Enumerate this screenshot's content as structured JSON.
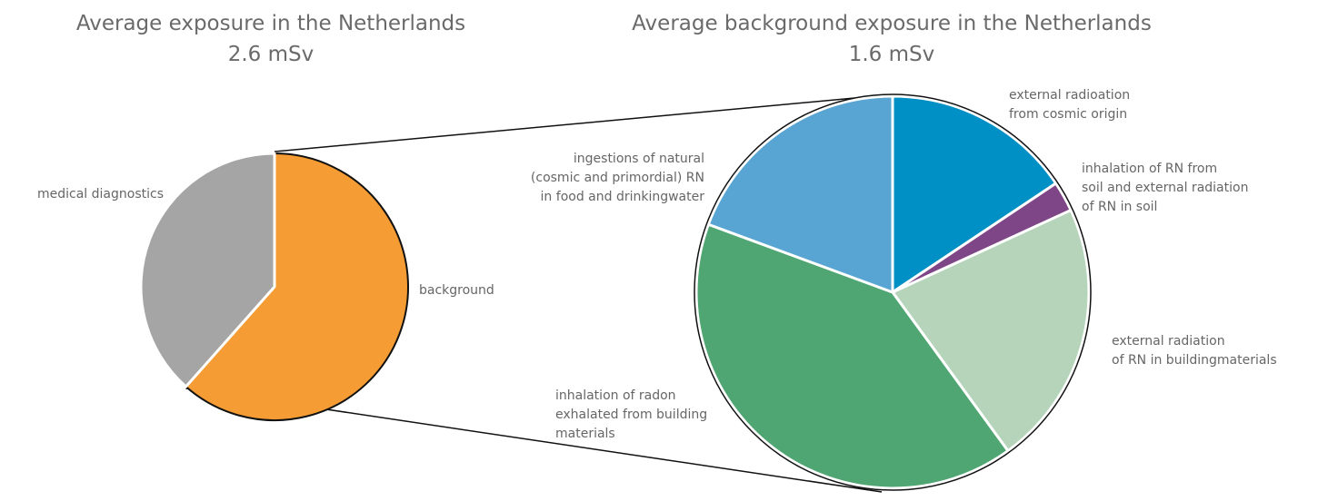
{
  "chart_data": [
    {
      "type": "pie",
      "title": "Average exposure in the Netherlands",
      "subtitle": "2.6 mSv",
      "slices": [
        {
          "label": "background",
          "value": 1.6,
          "color": "#f59c34"
        },
        {
          "label": "medical diagnostics",
          "value": 1.0,
          "color": "#a5a5a5"
        }
      ]
    },
    {
      "type": "pie",
      "title": "Average background exposure in the Netherlands",
      "subtitle": "1.6 mSv",
      "slices": [
        {
          "label": "external radioation\nfrom cosmic origin",
          "value": 0.25,
          "color": "#0090c5"
        },
        {
          "label": "inhalation of RN from\nsoil and external radiation\nof RN in soil",
          "value": 0.04,
          "color": "#7e4686"
        },
        {
          "label": "external radiation\nof RN in buildingmaterials",
          "value": 0.35,
          "color": "#b5d4ba"
        },
        {
          "label": "inhalation of radon\nexhalated from building\nmaterials",
          "value": 0.65,
          "color": "#50a672"
        },
        {
          "label": "ingestions of natural\n(cosmic and primordial) RN\nin food and drinkingwater",
          "value": 0.31,
          "color": "#58a5d3"
        }
      ]
    }
  ]
}
